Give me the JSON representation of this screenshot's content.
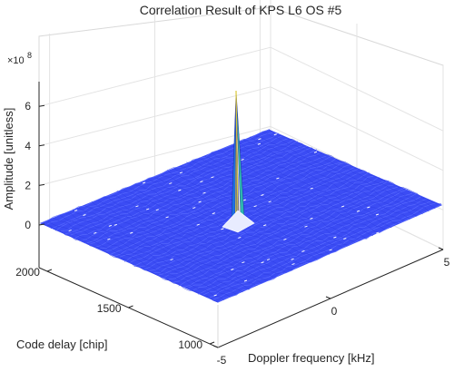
{
  "chart_data": {
    "type": "surface",
    "title": "Correlation Result of KPS L6 OS #5",
    "xlabel": "Doppler frequency [kHz]",
    "ylabel": "Code delay [chip]",
    "zlabel": "Amplitude [unitless]",
    "z_exponent": "×10",
    "z_exponent_power": "8",
    "x_ticks": [
      "-5",
      "0",
      "5"
    ],
    "y_ticks": [
      "1000",
      "1500",
      "2000"
    ],
    "z_ticks": [
      "0",
      "2",
      "4",
      "6"
    ],
    "xlim": [
      -5,
      5
    ],
    "ylim": [
      950,
      2050
    ],
    "zlim": [
      -1,
      7.5
    ],
    "grid": true,
    "peak": {
      "doppler_khz": 0,
      "code_delay_chip": 1650,
      "amplitude_e8": 6.7
    },
    "noise_floor_amplitude_e8": 0.1,
    "surface_color": "#3b4cf4",
    "peak_colors": [
      "#f2e84a",
      "#2eb6b0",
      "#1e6fe0"
    ]
  }
}
